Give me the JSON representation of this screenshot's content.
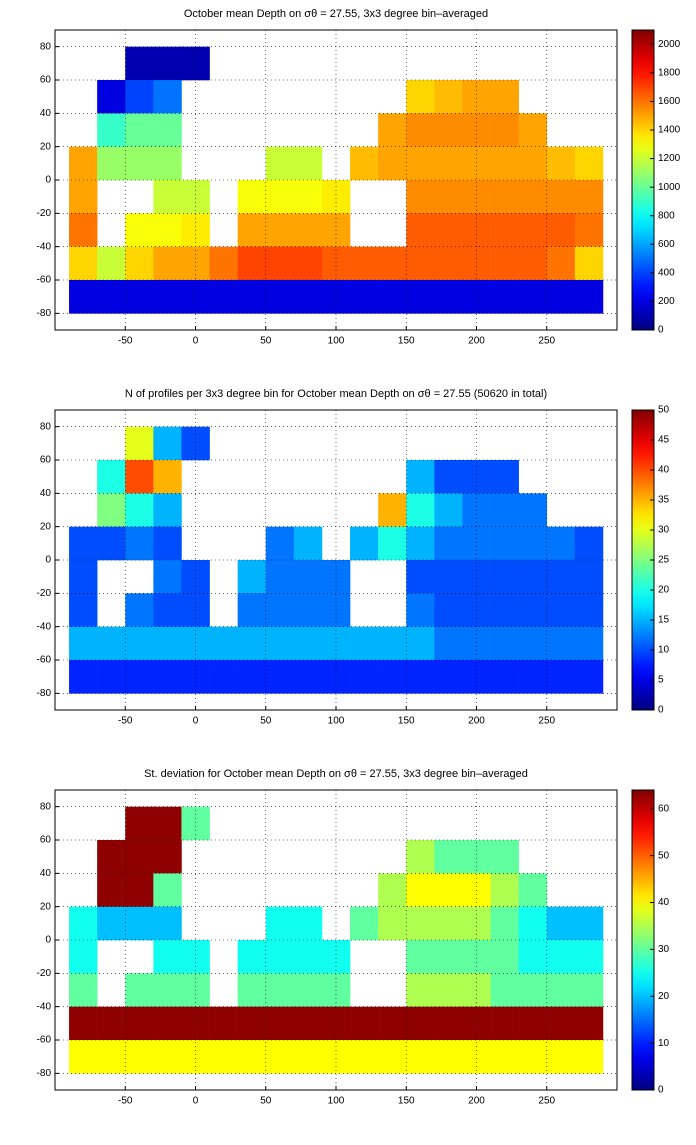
{
  "chart_data": [
    {
      "type": "heatmap",
      "title": "October mean Depth on σθ = 27.55, 3x3 degree bin–averaged",
      "x": [
        -80,
        -60,
        -40,
        -20,
        0,
        20,
        40,
        60,
        80,
        100,
        120,
        140,
        160,
        180,
        200,
        220,
        240,
        260,
        280
      ],
      "y": [
        70,
        50,
        30,
        10,
        -10,
        -30,
        -50,
        -70
      ],
      "values": [
        [
          null,
          null,
          100,
          100,
          100,
          null,
          null,
          null,
          null,
          null,
          null,
          null,
          null,
          null,
          null,
          null,
          null,
          null,
          null
        ],
        [
          null,
          200,
          400,
          500,
          null,
          null,
          null,
          null,
          null,
          null,
          null,
          null,
          1400,
          1450,
          1500,
          1500,
          null,
          null,
          null
        ],
        [
          null,
          900,
          1000,
          1000,
          null,
          null,
          null,
          null,
          null,
          null,
          null,
          1500,
          1550,
          1550,
          1550,
          1550,
          1500,
          null,
          null
        ],
        [
          1500,
          1100,
          1100,
          1100,
          null,
          null,
          null,
          1200,
          1200,
          null,
          1450,
          1500,
          1500,
          1500,
          1500,
          1500,
          1500,
          1450,
          1400
        ],
        [
          1500,
          null,
          null,
          1200,
          1200,
          null,
          1300,
          1300,
          1300,
          1350,
          null,
          null,
          1550,
          1550,
          1550,
          1550,
          1550,
          1550,
          1550
        ],
        [
          1600,
          null,
          1300,
          1300,
          1350,
          null,
          1500,
          1500,
          1500,
          1500,
          null,
          null,
          1650,
          1650,
          1650,
          1650,
          1650,
          1650,
          1600
        ],
        [
          1400,
          1200,
          1400,
          1500,
          1500,
          1600,
          1700,
          1700,
          1700,
          1650,
          1650,
          1650,
          1650,
          1650,
          1650,
          1650,
          1650,
          1600,
          1400
        ],
        [
          200,
          200,
          200,
          200,
          200,
          200,
          200,
          200,
          200,
          200,
          200,
          200,
          200,
          200,
          200,
          200,
          200,
          200,
          200
        ]
      ],
      "xlim": [
        -100,
        300
      ],
      "ylim": [
        -90,
        90
      ],
      "xticks": [
        -50,
        0,
        50,
        100,
        150,
        200,
        250
      ],
      "yticks": [
        -80,
        -60,
        -40,
        -20,
        0,
        20,
        40,
        60,
        80
      ],
      "clim": [
        0,
        2100
      ],
      "cticks": [
        0,
        200,
        400,
        600,
        800,
        1000,
        1200,
        1400,
        1600,
        1800,
        2000
      ],
      "colormap": "jet",
      "grid": true
    },
    {
      "type": "heatmap",
      "title": "N of profiles per 3x3 degree bin for October mean Depth on σθ = 27.55 (50620 in total)",
      "x": [
        -80,
        -60,
        -40,
        -20,
        0,
        20,
        40,
        60,
        80,
        100,
        120,
        140,
        160,
        180,
        200,
        220,
        240,
        260,
        280
      ],
      "y": [
        70,
        50,
        30,
        10,
        -10,
        -30,
        -50,
        -70
      ],
      "values": [
        [
          null,
          null,
          30,
          15,
          10,
          null,
          null,
          null,
          null,
          null,
          null,
          null,
          null,
          null,
          null,
          null,
          null,
          null,
          null
        ],
        [
          null,
          20,
          40,
          35,
          null,
          null,
          null,
          null,
          null,
          null,
          null,
          null,
          15,
          10,
          10,
          10,
          null,
          null,
          null
        ],
        [
          null,
          25,
          20,
          15,
          null,
          null,
          null,
          null,
          null,
          null,
          null,
          35,
          20,
          15,
          12,
          12,
          12,
          null,
          null
        ],
        [
          10,
          10,
          12,
          10,
          null,
          null,
          null,
          12,
          15,
          null,
          15,
          20,
          15,
          12,
          12,
          12,
          12,
          12,
          10
        ],
        [
          10,
          null,
          null,
          12,
          10,
          null,
          15,
          12,
          12,
          12,
          null,
          null,
          10,
          10,
          10,
          10,
          10,
          10,
          10
        ],
        [
          10,
          null,
          12,
          10,
          10,
          null,
          12,
          12,
          12,
          12,
          null,
          null,
          12,
          10,
          10,
          10,
          10,
          10,
          10
        ],
        [
          15,
          15,
          15,
          15,
          15,
          15,
          15,
          15,
          15,
          15,
          15,
          15,
          15,
          12,
          12,
          12,
          12,
          12,
          12
        ],
        [
          8,
          8,
          8,
          8,
          8,
          8,
          8,
          8,
          8,
          8,
          8,
          8,
          8,
          8,
          8,
          8,
          8,
          8,
          8
        ]
      ],
      "xlim": [
        -100,
        300
      ],
      "ylim": [
        -90,
        90
      ],
      "xticks": [
        -50,
        0,
        50,
        100,
        150,
        200,
        250
      ],
      "yticks": [
        -80,
        -60,
        -40,
        -20,
        0,
        20,
        40,
        60,
        80
      ],
      "clim": [
        0,
        50
      ],
      "cticks": [
        0,
        5,
        10,
        15,
        20,
        25,
        30,
        35,
        40,
        45,
        50
      ],
      "colormap": "jet",
      "grid": true
    },
    {
      "type": "heatmap",
      "title": "St. deviation for October mean Depth on σθ = 27.55, 3x3 degree bin–averaged",
      "x": [
        -80,
        -60,
        -40,
        -20,
        0,
        20,
        40,
        60,
        80,
        100,
        120,
        140,
        160,
        180,
        200,
        220,
        240,
        260,
        280
      ],
      "y": [
        70,
        50,
        30,
        10,
        -10,
        -30,
        -50,
        -70
      ],
      "values": [
        [
          null,
          null,
          63,
          63,
          30,
          null,
          null,
          null,
          null,
          null,
          null,
          null,
          null,
          null,
          null,
          null,
          null,
          null,
          null
        ],
        [
          null,
          63,
          63,
          63,
          null,
          null,
          null,
          null,
          null,
          null,
          null,
          null,
          35,
          30,
          30,
          30,
          null,
          null,
          null
        ],
        [
          null,
          63,
          63,
          30,
          null,
          null,
          null,
          null,
          null,
          null,
          null,
          35,
          40,
          40,
          40,
          35,
          30,
          null,
          null
        ],
        [
          25,
          20,
          20,
          20,
          null,
          null,
          null,
          25,
          25,
          null,
          30,
          35,
          35,
          35,
          35,
          30,
          25,
          20,
          20
        ],
        [
          25,
          null,
          null,
          25,
          25,
          null,
          25,
          25,
          25,
          25,
          null,
          null,
          30,
          30,
          30,
          30,
          25,
          25,
          25
        ],
        [
          30,
          null,
          30,
          30,
          30,
          null,
          30,
          30,
          30,
          30,
          null,
          null,
          35,
          35,
          35,
          30,
          30,
          30,
          30
        ],
        [
          63,
          63,
          63,
          63,
          63,
          63,
          63,
          63,
          63,
          63,
          63,
          63,
          63,
          63,
          63,
          63,
          63,
          63,
          63
        ],
        [
          40,
          40,
          40,
          40,
          40,
          40,
          40,
          40,
          40,
          40,
          40,
          40,
          40,
          40,
          40,
          40,
          40,
          40,
          40
        ]
      ],
      "xlim": [
        -100,
        300
      ],
      "ylim": [
        -90,
        90
      ],
      "xticks": [
        -50,
        0,
        50,
        100,
        150,
        200,
        250
      ],
      "yticks": [
        -80,
        -60,
        -40,
        -20,
        0,
        20,
        40,
        60,
        80
      ],
      "clim": [
        0,
        64
      ],
      "cticks": [
        0,
        10,
        20,
        30,
        40,
        50,
        60
      ],
      "colormap": "jet",
      "grid": true
    }
  ]
}
